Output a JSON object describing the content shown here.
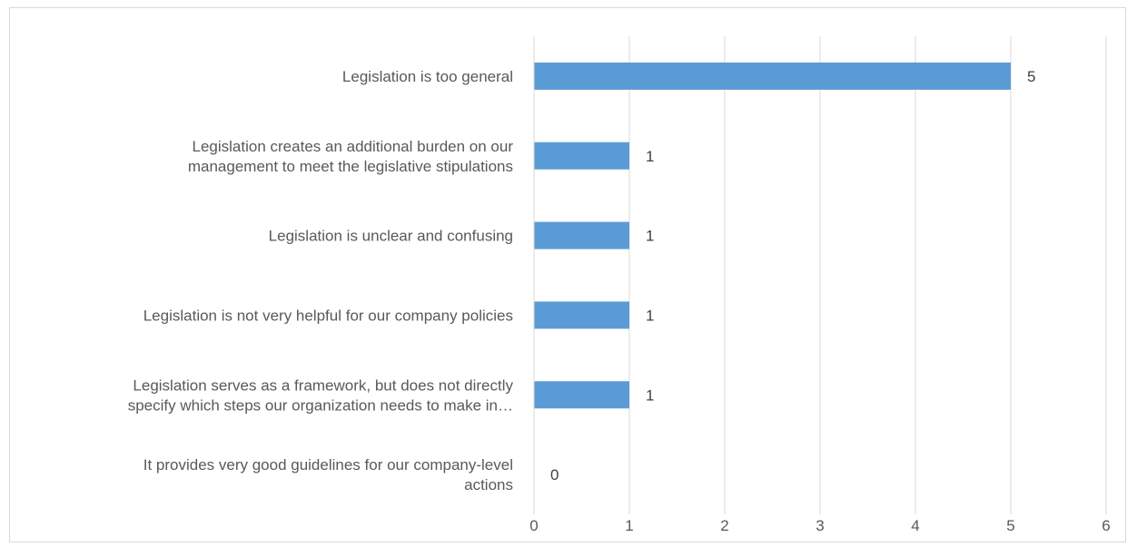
{
  "chart_data": {
    "type": "bar",
    "orientation": "horizontal",
    "categories": [
      [
        "Legislation is too general"
      ],
      [
        "Legislation creates an additional burden on our",
        "management to meet the legislative stipulations"
      ],
      [
        "Legislation is unclear and confusing"
      ],
      [
        "Legislation is not very helpful for our company policies"
      ],
      [
        "Legislation serves as a framework, but does not directly",
        "specify which steps our organization needs to make in…"
      ],
      [
        "It provides very good guidelines for our company-level",
        "actions"
      ]
    ],
    "values": [
      5,
      1,
      1,
      1,
      1,
      0
    ],
    "xlim": [
      0,
      6
    ],
    "xticks": [
      "0",
      "1",
      "2",
      "3",
      "4",
      "5",
      "6"
    ],
    "grid": "vertical",
    "bar_color": "#5B9BD5",
    "title": "",
    "xlabel": "",
    "ylabel": ""
  }
}
